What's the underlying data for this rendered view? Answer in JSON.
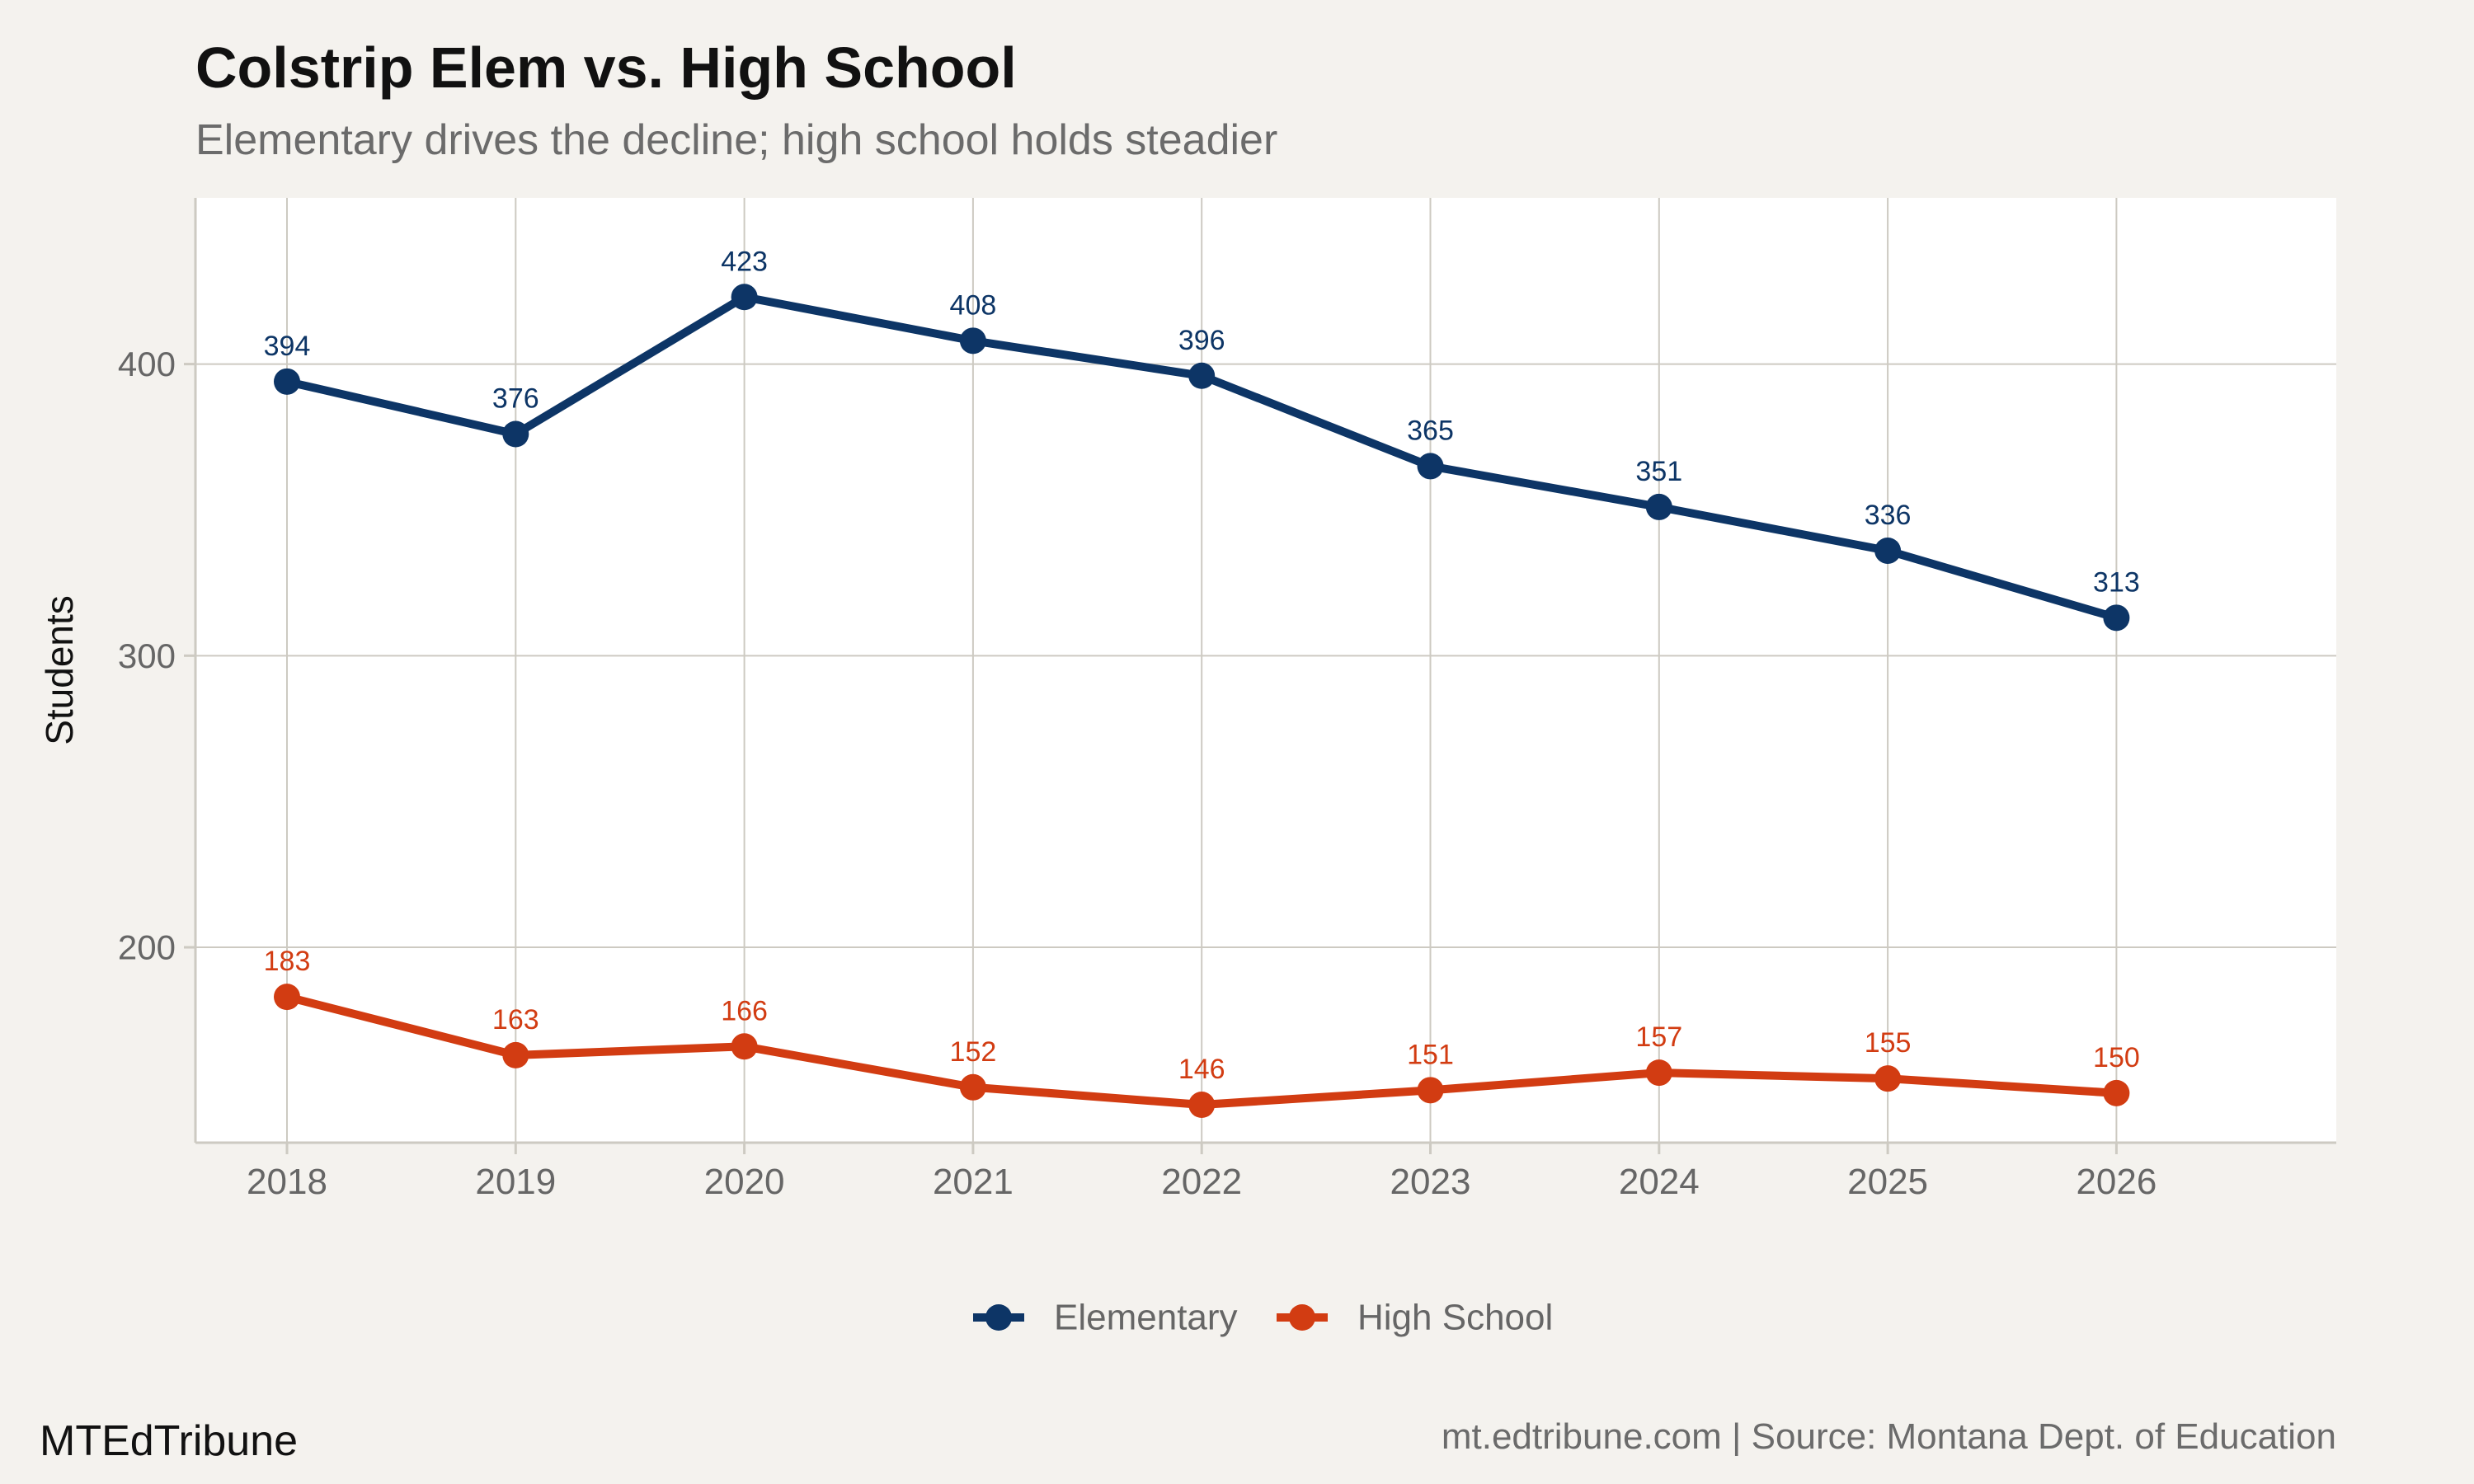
{
  "header": {
    "title": "Colstrip Elem vs. High School",
    "subtitle": "Elementary drives the decline; high school holds steadier"
  },
  "footer": {
    "brand": "MTEdTribune",
    "source": "mt.edtribune.com | Source: Montana Dept. of Education"
  },
  "colors": {
    "background": "#f4f2ee",
    "panel": "#ffffff",
    "grid": "#cdcac2",
    "elementary": "#0d3566",
    "high_school": "#d23c12",
    "axis_text": "#666666"
  },
  "chart_data": {
    "type": "line",
    "title": "Colstrip Elem vs. High School",
    "subtitle": "Elementary drives the decline; high school holds steadier",
    "xlabel": "",
    "ylabel": "Students",
    "x": [
      "2018",
      "2019",
      "2020",
      "2021",
      "2022",
      "2023",
      "2024",
      "2025",
      "2026"
    ],
    "ylim": [
      133,
      457
    ],
    "y_ticks": [
      200,
      300,
      400
    ],
    "grid": true,
    "legend_position": "bottom",
    "data_labels": true,
    "series": [
      {
        "name": "Elementary",
        "color": "#0d3566",
        "values": [
          394,
          376,
          423,
          408,
          396,
          365,
          351,
          336,
          313
        ]
      },
      {
        "name": "High School",
        "color": "#d23c12",
        "values": [
          183,
          163,
          166,
          152,
          146,
          151,
          157,
          155,
          150
        ]
      }
    ]
  }
}
